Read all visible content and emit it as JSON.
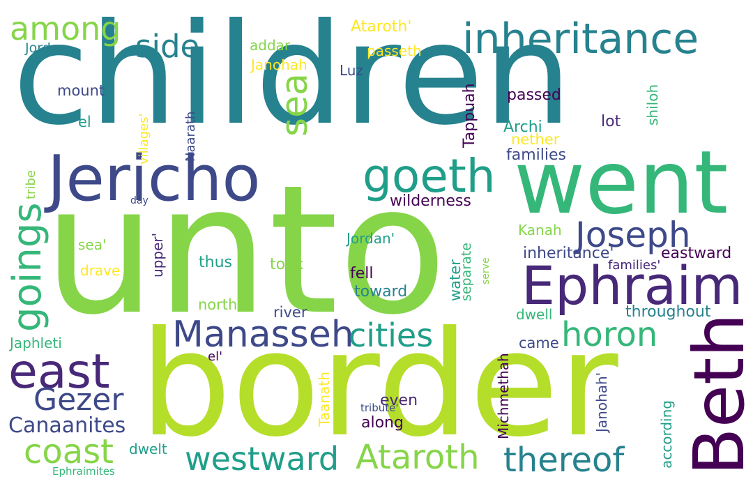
{
  "palette": {
    "teal": "#26828e",
    "lime": "#b5de2b",
    "green": "#86d549",
    "indigo": "#3e4989",
    "purple": "#482878",
    "seagreen": "#35b779",
    "yellow": "#fde725",
    "darkpurple": "#440154",
    "cyan": "#1f9e89"
  },
  "words": [
    {
      "id": "children",
      "text": "children",
      "color": "teal"
    },
    {
      "id": "unto",
      "text": "unto",
      "color": "green"
    },
    {
      "id": "border",
      "text": "border",
      "color": "lime"
    },
    {
      "id": "went",
      "text": "went",
      "color": "seagreen"
    },
    {
      "id": "beth",
      "text": "Beth",
      "color": "darkpurple"
    },
    {
      "id": "jericho",
      "text": "Jericho",
      "color": "indigo"
    },
    {
      "id": "ephraim",
      "text": "Ephraim",
      "color": "purple"
    },
    {
      "id": "inheritance",
      "text": "inheritance",
      "color": "teal"
    },
    {
      "id": "goeth",
      "text": "goeth",
      "color": "cyan"
    },
    {
      "id": "sea",
      "text": "sea",
      "color": "green"
    },
    {
      "id": "side",
      "text": "side",
      "color": "teal"
    },
    {
      "id": "among",
      "text": "among",
      "color": "green"
    },
    {
      "id": "joseph",
      "text": "Joseph",
      "color": "indigo"
    },
    {
      "id": "goings",
      "text": "goings",
      "color": "seagreen"
    },
    {
      "id": "east",
      "text": "east",
      "color": "purple"
    },
    {
      "id": "manasseh",
      "text": "Manasseh",
      "color": "indigo"
    },
    {
      "id": "cities",
      "text": "cities",
      "color": "cyan"
    },
    {
      "id": "horon",
      "text": "horon",
      "color": "seagreen"
    },
    {
      "id": "gezer",
      "text": "Gezer",
      "color": "indigo"
    },
    {
      "id": "coast",
      "text": "coast",
      "color": "green"
    },
    {
      "id": "westward",
      "text": "westward",
      "color": "cyan"
    },
    {
      "id": "ataroth",
      "text": "Ataroth",
      "color": "green"
    },
    {
      "id": "thereof",
      "text": "thereof",
      "color": "teal"
    },
    {
      "id": "canaanites",
      "text": "Canaanites",
      "color": "indigo"
    },
    {
      "id": "ataroth_q",
      "text": "Ataroth'",
      "color": "yellow"
    },
    {
      "id": "jordan",
      "text": "Jordan",
      "color": "teal"
    },
    {
      "id": "addar",
      "text": "addar",
      "color": "green"
    },
    {
      "id": "passeth",
      "text": "passeth",
      "color": "yellow"
    },
    {
      "id": "janohah",
      "text": "Janohah",
      "color": "yellow"
    },
    {
      "id": "luz",
      "text": "Luz",
      "color": "indigo"
    },
    {
      "id": "mount",
      "text": "mount",
      "color": "indigo"
    },
    {
      "id": "el",
      "text": "el",
      "color": "cyan"
    },
    {
      "id": "villages_q",
      "text": "villages'",
      "color": "yellow"
    },
    {
      "id": "naarath",
      "text": "Naarath",
      "color": "indigo"
    },
    {
      "id": "tappuah",
      "text": "Tappuah",
      "color": "darkpurple"
    },
    {
      "id": "passed",
      "text": "passed",
      "color": "darkpurple"
    },
    {
      "id": "shiloh",
      "text": "shiloh",
      "color": "seagreen"
    },
    {
      "id": "lot",
      "text": "lot",
      "color": "purple"
    },
    {
      "id": "archi",
      "text": "Archi",
      "color": "cyan"
    },
    {
      "id": "nether",
      "text": "nether",
      "color": "yellow"
    },
    {
      "id": "families",
      "text": "families",
      "color": "indigo"
    },
    {
      "id": "tribe",
      "text": "tribe",
      "color": "green"
    },
    {
      "id": "day",
      "text": "day",
      "color": "indigo"
    },
    {
      "id": "wilderness",
      "text": "wilderness",
      "color": "darkpurple"
    },
    {
      "id": "kanah",
      "text": "Kanah",
      "color": "green"
    },
    {
      "id": "jordan_q",
      "text": "Jordan'",
      "color": "cyan"
    },
    {
      "id": "inheritance_q",
      "text": "inheritance'",
      "color": "indigo"
    },
    {
      "id": "eastward",
      "text": "eastward",
      "color": "darkpurple"
    },
    {
      "id": "sea_q",
      "text": "sea'",
      "color": "green"
    },
    {
      "id": "upper_q",
      "text": "upper'",
      "color": "purple"
    },
    {
      "id": "thus",
      "text": "thus",
      "color": "cyan"
    },
    {
      "id": "took",
      "text": "took",
      "color": "green"
    },
    {
      "id": "water",
      "text": "water",
      "color": "cyan"
    },
    {
      "id": "separate",
      "text": "separate",
      "color": "seagreen"
    },
    {
      "id": "serve",
      "text": "serve",
      "color": "green"
    },
    {
      "id": "families_q",
      "text": "families'",
      "color": "purple"
    },
    {
      "id": "drave",
      "text": "drave",
      "color": "yellow"
    },
    {
      "id": "fell",
      "text": "fell",
      "color": "darkpurple"
    },
    {
      "id": "toward",
      "text": "toward",
      "color": "teal"
    },
    {
      "id": "north",
      "text": "north",
      "color": "green"
    },
    {
      "id": "river",
      "text": "river",
      "color": "indigo"
    },
    {
      "id": "dwell",
      "text": "dwell",
      "color": "seagreen"
    },
    {
      "id": "throughout",
      "text": "throughout",
      "color": "teal"
    },
    {
      "id": "japhleti",
      "text": "Japhleti",
      "color": "seagreen"
    },
    {
      "id": "el_q",
      "text": "el'",
      "color": "darkpurple"
    },
    {
      "id": "came",
      "text": "came",
      "color": "indigo"
    },
    {
      "id": "michmethah",
      "text": "Michmethah",
      "color": "darkpurple"
    },
    {
      "id": "janohah_q",
      "text": "Janohah'",
      "color": "indigo"
    },
    {
      "id": "taanath",
      "text": "Taanath",
      "color": "yellow"
    },
    {
      "id": "even",
      "text": "even",
      "color": "purple"
    },
    {
      "id": "according",
      "text": "according",
      "color": "cyan"
    },
    {
      "id": "tribute_q",
      "text": "tribute'",
      "color": "indigo"
    },
    {
      "id": "along",
      "text": "along",
      "color": "darkpurple"
    },
    {
      "id": "dwelt",
      "text": "dwelt",
      "color": "cyan"
    },
    {
      "id": "ephraimites",
      "text": "Ephraimites",
      "color": "seagreen"
    }
  ]
}
